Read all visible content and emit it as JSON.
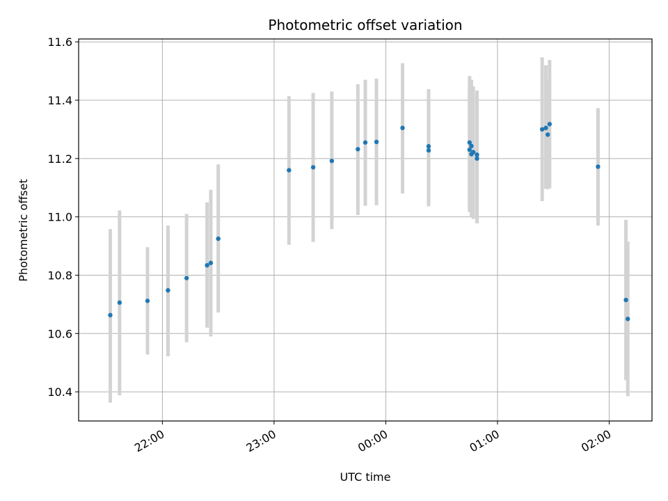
{
  "chart_data": {
    "type": "scatter",
    "title": "Photometric offset variation",
    "xlabel": "UTC time",
    "ylabel": "Photometric offset",
    "x_axis_type": "time",
    "xlim": [
      "21:15",
      "02:23"
    ],
    "ylim": [
      10.3,
      11.61
    ],
    "x_ticks": [
      "22:00",
      "23:00",
      "00:00",
      "01:00",
      "02:00"
    ],
    "y_ticks": [
      10.4,
      10.6,
      10.8,
      11.0,
      11.2,
      11.4,
      11.6
    ],
    "grid": true,
    "marker_color": "#1f77b4",
    "errorbar_color": "#d3d3d3",
    "points": [
      {
        "t": "21:32",
        "y": 10.663,
        "lo": 10.363,
        "hi": 10.958
      },
      {
        "t": "21:37",
        "y": 10.706,
        "lo": 10.388,
        "hi": 11.022
      },
      {
        "t": "21:52",
        "y": 10.712,
        "lo": 10.528,
        "hi": 10.896
      },
      {
        "t": "22:03",
        "y": 10.748,
        "lo": 10.522,
        "hi": 10.97
      },
      {
        "t": "22:13",
        "y": 10.79,
        "lo": 10.57,
        "hi": 11.01
      },
      {
        "t": "22:24",
        "y": 10.834,
        "lo": 10.62,
        "hi": 11.05
      },
      {
        "t": "22:26",
        "y": 10.842,
        "lo": 10.59,
        "hi": 11.093
      },
      {
        "t": "22:30",
        "y": 10.925,
        "lo": 10.672,
        "hi": 11.18
      },
      {
        "t": "23:08",
        "y": 11.16,
        "lo": 10.904,
        "hi": 11.414
      },
      {
        "t": "23:21",
        "y": 11.17,
        "lo": 10.914,
        "hi": 11.425
      },
      {
        "t": "23:31",
        "y": 11.192,
        "lo": 10.958,
        "hi": 11.43
      },
      {
        "t": "23:45",
        "y": 11.232,
        "lo": 11.006,
        "hi": 11.455
      },
      {
        "t": "23:49",
        "y": 11.255,
        "lo": 11.038,
        "hi": 11.47
      },
      {
        "t": "23:55",
        "y": 11.257,
        "lo": 11.04,
        "hi": 11.474
      },
      {
        "t": "00:09",
        "y": 11.305,
        "lo": 11.08,
        "hi": 11.527
      },
      {
        "t": "00:23",
        "y": 11.242,
        "lo": 11.036,
        "hi": 11.438
      },
      {
        "t": "00:23",
        "y": 11.228,
        "lo": 11.038,
        "hi": 11.42
      },
      {
        "t": "00:45",
        "y": 11.23,
        "lo": 11.016,
        "hi": 11.445
      },
      {
        "t": "00:45",
        "y": 11.255,
        "lo": 11.03,
        "hi": 11.483
      },
      {
        "t": "00:46",
        "y": 11.243,
        "lo": 11.02,
        "hi": 11.47
      },
      {
        "t": "00:46",
        "y": 11.215,
        "lo": 11.0,
        "hi": 11.43
      },
      {
        "t": "00:47",
        "y": 11.222,
        "lo": 10.993,
        "hi": 11.447
      },
      {
        "t": "00:49",
        "y": 11.2,
        "lo": 10.978,
        "hi": 11.42
      },
      {
        "t": "00:49",
        "y": 11.213,
        "lo": 10.993,
        "hi": 11.433
      },
      {
        "t": "01:24",
        "y": 11.3,
        "lo": 11.054,
        "hi": 11.547
      },
      {
        "t": "01:26",
        "y": 11.305,
        "lo": 11.096,
        "hi": 11.52
      },
      {
        "t": "01:27",
        "y": 11.282,
        "lo": 11.095,
        "hi": 11.468
      },
      {
        "t": "01:28",
        "y": 11.318,
        "lo": 11.098,
        "hi": 11.538
      },
      {
        "t": "01:54",
        "y": 11.172,
        "lo": 10.97,
        "hi": 11.373
      },
      {
        "t": "02:09",
        "y": 10.715,
        "lo": 10.44,
        "hi": 10.99
      },
      {
        "t": "02:10",
        "y": 10.65,
        "lo": 10.385,
        "hi": 10.915
      }
    ]
  }
}
